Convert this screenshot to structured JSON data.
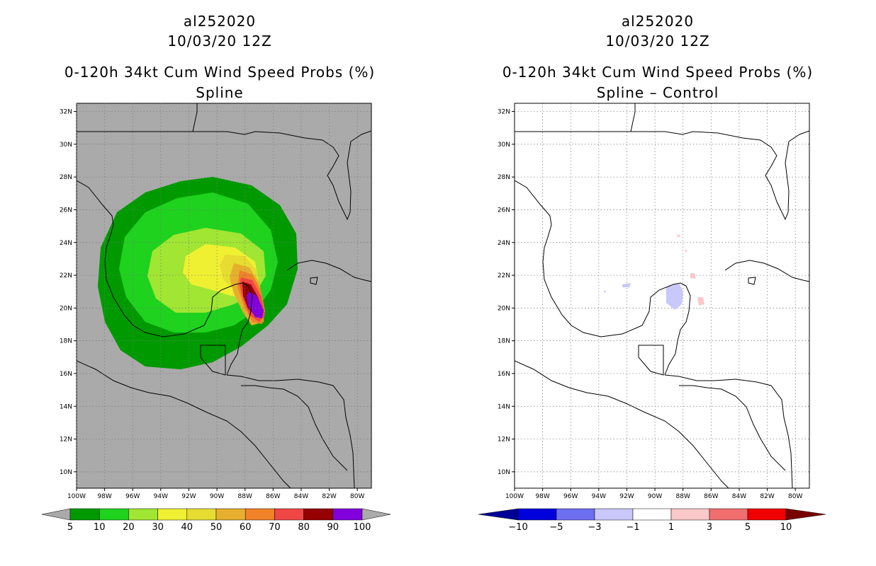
{
  "left_panel": {
    "storm_id": "al252020",
    "datetime": "10/03/20 12Z",
    "product": "0-120h 34kt Cum Wind Speed Probs (%)",
    "subtitle": "Spline",
    "colorbar_labels": [
      "5",
      "10",
      "20",
      "30",
      "40",
      "50",
      "60",
      "70",
      "80",
      "90",
      "100"
    ],
    "colorbar_colors": [
      "#009a00",
      "#1ed21e",
      "#a0e632",
      "#f0f032",
      "#e6dc32",
      "#e6af2d",
      "#f08228",
      "#f04646",
      "#960000",
      "#8200dc"
    ],
    "background_color": "#aaaaaa"
  },
  "right_panel": {
    "storm_id": "al252020",
    "datetime": "10/03/20 12Z",
    "product": "0-120h 34kt Cum Wind Speed Probs (%)",
    "subtitle": "Spline – Control",
    "colorbar_labels": [
      "−10",
      "−5",
      "−3",
      "−1",
      "1",
      "3",
      "5",
      "10"
    ],
    "colorbar_colors": [
      "#0000dc",
      "#6e6ef0",
      "#c8c8fa",
      "#ffffff",
      "#fac8c8",
      "#f06e6e",
      "#f00000"
    ],
    "under_color": "#000096",
    "over_color": "#780000"
  },
  "axes": {
    "lat_labels": [
      "32N",
      "30N",
      "28N",
      "26N",
      "24N",
      "22N",
      "20N",
      "18N",
      "16N",
      "14N",
      "12N",
      "10N"
    ],
    "lat_values": [
      32,
      30,
      28,
      26,
      24,
      22,
      20,
      18,
      16,
      14,
      12,
      10
    ],
    "lon_labels": [
      "100W",
      "98W",
      "96W",
      "94W",
      "92W",
      "90W",
      "88W",
      "86W",
      "84W",
      "82W",
      "80W"
    ],
    "lon_values": [
      100,
      98,
      96,
      94,
      92,
      90,
      88,
      86,
      84,
      82,
      80
    ],
    "lon_range": [
      100,
      79
    ],
    "lat_range": [
      9,
      32.5
    ]
  }
}
